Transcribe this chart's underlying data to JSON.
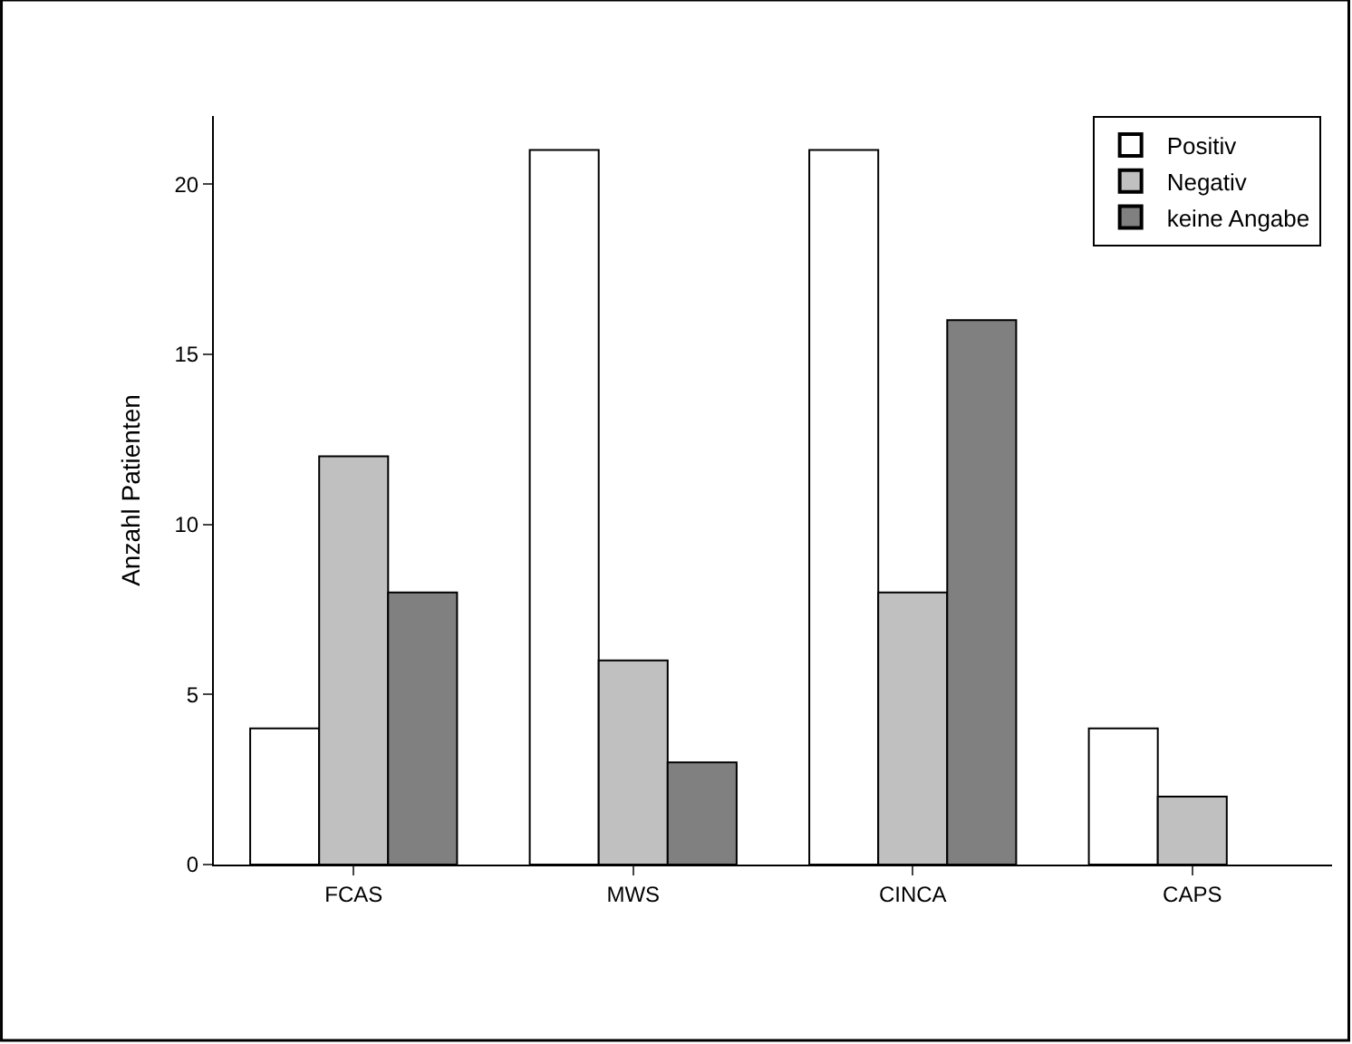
{
  "chart_data": {
    "type": "bar",
    "ylabel": "Anzahl Patienten",
    "categories": [
      "FCAS",
      "MWS",
      "CINCA",
      "CAPS"
    ],
    "series": [
      {
        "name": "Positiv",
        "color": "#ffffff",
        "values": [
          4,
          21,
          21,
          4
        ]
      },
      {
        "name": "Negativ",
        "color": "#c0c0c0",
        "values": [
          12,
          6,
          8,
          2
        ]
      },
      {
        "name": "keine Angabe",
        "color": "#808080",
        "values": [
          8,
          3,
          16,
          null
        ]
      }
    ],
    "ylim": [
      0,
      22
    ],
    "yticks": [
      0,
      5,
      10,
      15,
      20
    ],
    "legend": "top right"
  }
}
